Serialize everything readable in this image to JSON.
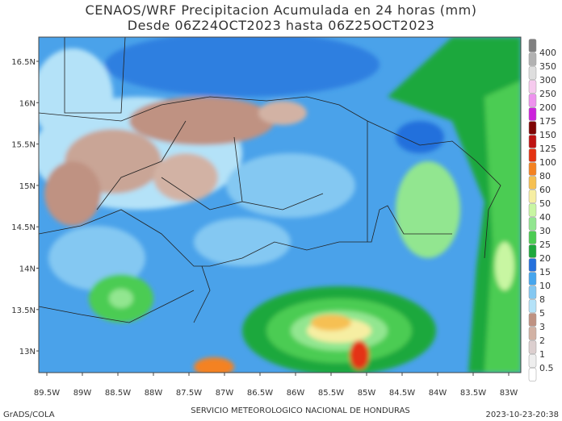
{
  "title": "CENAOS/WRF Precipitacion Acumulada en 24 horas (mm)",
  "subtitle": "Desde 06Z24OCT2023 hasta 06Z25OCT2023",
  "lat_labels": [
    "16.5N",
    "16N",
    "15.5N",
    "15N",
    "14.5N",
    "14N",
    "13.5N",
    "13N"
  ],
  "lon_labels": [
    "89.5W",
    "89W",
    "88.5W",
    "88W",
    "87.5W",
    "87W",
    "86.5W",
    "86W",
    "85.5W",
    "85W",
    "84.5W",
    "84W",
    "83.5W",
    "83W"
  ],
  "colorbar": {
    "levels": [
      0.5,
      1,
      2,
      3,
      5,
      8,
      10,
      15,
      20,
      25,
      30,
      40,
      50,
      60,
      80,
      100,
      125,
      150,
      175,
      200,
      250,
      300,
      350,
      400
    ],
    "colors": [
      "#ffffff",
      "#eeeeee",
      "#dccfcf",
      "#d2b2a4",
      "#bf9282",
      "#b4e2f8",
      "#84c8f2",
      "#46a6ee",
      "#2470dc",
      "#1ea83c",
      "#4ccc52",
      "#92e690",
      "#c8f6a2",
      "#f6eea2",
      "#f6c052",
      "#f48222",
      "#e43212",
      "#be1212",
      "#7e0404",
      "#cc22dc",
      "#ee92ee",
      "#f6caee",
      "#dedede",
      "#b2b2b2",
      "#808080"
    ]
  },
  "footer": {
    "left": "GrADS/COLA",
    "center": "SERVICIO METEOROLOGICO NACIONAL DE HONDURAS",
    "right": "2023-10-23-20:38"
  }
}
